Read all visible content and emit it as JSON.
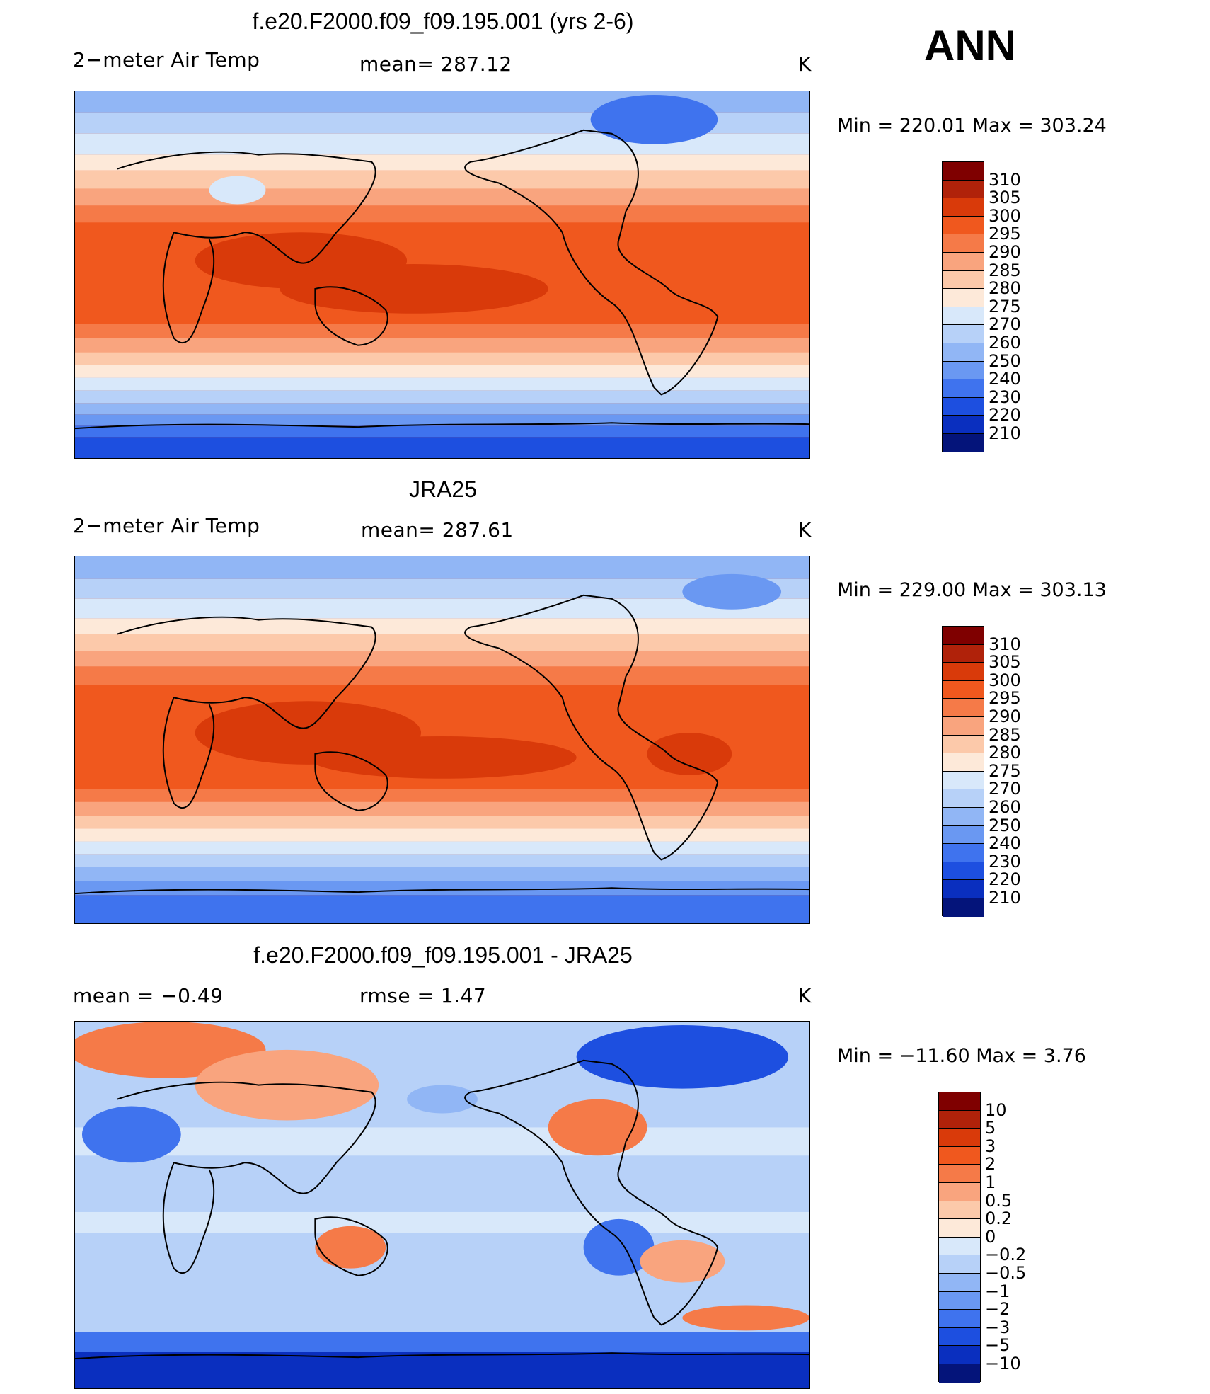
{
  "season": "ANN",
  "panels": [
    {
      "title": "f.e20.F2000.f09_f09.195.001 (yrs 2-6)",
      "variable": "2−meter Air Temp",
      "stat1": "mean=  287.12",
      "stat2": "",
      "units": "K",
      "minmax": "Min  =  220.01  Max  =  303.24",
      "colorbar_ticks": [
        "310",
        "305",
        "300",
        "295",
        "290",
        "285",
        "280",
        "275",
        "270",
        "260",
        "250",
        "240",
        "230",
        "220",
        "210"
      ],
      "colorbar_colors": [
        "#7f0000",
        "#b0220a",
        "#d93a0a",
        "#f0581e",
        "#f57a48",
        "#f9a47e",
        "#fcc9aa",
        "#fde9d9",
        "#d8e8fa",
        "#b7d1f8",
        "#91b6f5",
        "#6a98f2",
        "#3f73ee",
        "#1d4fe0",
        "#0a2fbf",
        "#04147a"
      ]
    },
    {
      "title": "JRA25",
      "variable": "2−meter Air Temp",
      "stat1": "mean=  287.61",
      "stat2": "",
      "units": "K",
      "minmax": "Min  =  229.00  Max  =  303.13",
      "colorbar_ticks": [
        "310",
        "305",
        "300",
        "295",
        "290",
        "285",
        "280",
        "275",
        "270",
        "260",
        "250",
        "240",
        "230",
        "220",
        "210"
      ],
      "colorbar_colors": [
        "#7f0000",
        "#b0220a",
        "#d93a0a",
        "#f0581e",
        "#f57a48",
        "#f9a47e",
        "#fcc9aa",
        "#fde9d9",
        "#d8e8fa",
        "#b7d1f8",
        "#91b6f5",
        "#6a98f2",
        "#3f73ee",
        "#1d4fe0",
        "#0a2fbf",
        "#04147a"
      ]
    },
    {
      "title": "f.e20.F2000.f09_f09.195.001 - JRA25",
      "variable": "mean  =    −0.49",
      "stat1": "rmse  =     1.47",
      "stat2": "",
      "units": "K",
      "minmax": "Min  =  −11.60  Max  =       3.76",
      "colorbar_ticks": [
        "10",
        "5",
        "3",
        "2",
        "1",
        "0.5",
        "0.2",
        "0",
        "−0.2",
        "−0.5",
        "−1",
        "−2",
        "−3",
        "−5",
        "−10"
      ],
      "colorbar_colors": [
        "#7f0000",
        "#b0220a",
        "#d93a0a",
        "#f0581e",
        "#f57a48",
        "#f9a47e",
        "#fcc9aa",
        "#fde9d9",
        "#d8e8fa",
        "#b7d1f8",
        "#91b6f5",
        "#6a98f2",
        "#3f73ee",
        "#1d4fe0",
        "#0a2fbf",
        "#04147a"
      ]
    }
  ]
}
